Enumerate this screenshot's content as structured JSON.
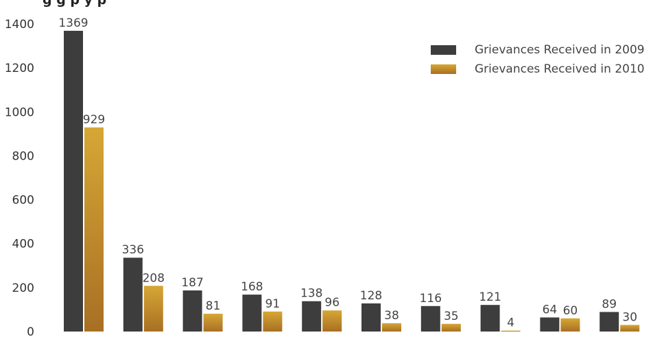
{
  "chart_data": {
    "type": "bar",
    "title": "g                                                g          p   y p",
    "xlabel": "",
    "ylabel": "",
    "ylim": [
      0,
      1400
    ],
    "yticks": [
      0,
      200,
      400,
      600,
      800,
      1000,
      1200,
      1400
    ],
    "grid": false,
    "legend_position": "top-right",
    "categories": [
      "",
      "",
      "",
      "",
      "",
      "",
      "",
      "",
      "",
      ""
    ],
    "series": [
      {
        "name": "Grievances Received in 2009",
        "color": "#3d3d3d",
        "values": [
          1369,
          336,
          187,
          168,
          138,
          128,
          116,
          121,
          64,
          89
        ],
        "labels": [
          "1369",
          "336",
          "187",
          "168",
          "138",
          "128",
          "116",
          "121",
          "64",
          "89"
        ]
      },
      {
        "name": "Grievances Received in 2010",
        "color": "#c8962e",
        "values": [
          929,
          208,
          81,
          91,
          96,
          38,
          35,
          4,
          60,
          30
        ],
        "labels": [
          "929",
          "208",
          "81",
          "91",
          "96",
          "38",
          "35",
          "4",
          "60",
          "30"
        ]
      }
    ]
  }
}
